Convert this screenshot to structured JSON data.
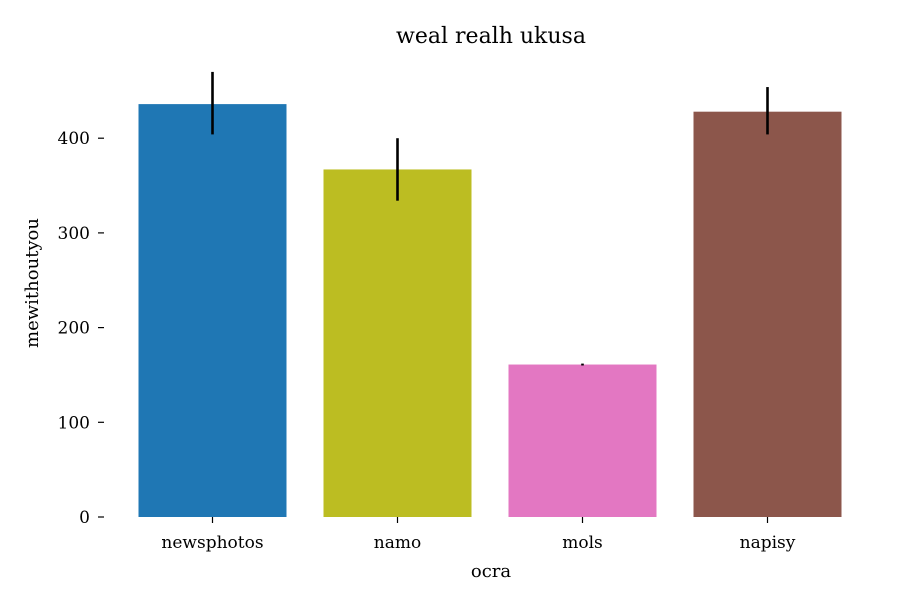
{
  "chart_data": {
    "type": "bar",
    "title": "weal realh ukusa",
    "xlabel": "ocra",
    "ylabel": "mewithoutyou",
    "categories": [
      "newsphotos",
      "namo",
      "mols",
      "napisy"
    ],
    "values": [
      436,
      367,
      161,
      428
    ],
    "error_low": [
      404,
      334,
      160,
      404
    ],
    "error_high": [
      470,
      400,
      162,
      454
    ],
    "colors": [
      "#1f77b4",
      "#bcbd22",
      "#e377c2",
      "#8c564b"
    ],
    "ylim": [
      0,
      480
    ],
    "yticks": [
      0,
      100,
      200,
      300,
      400
    ],
    "grid": false,
    "legend": "none"
  }
}
